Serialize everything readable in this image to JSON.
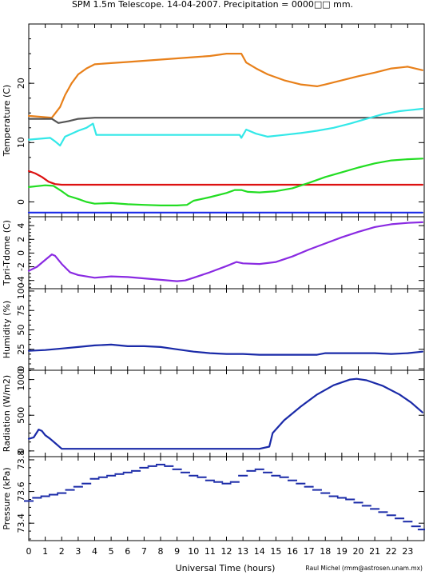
{
  "chart_data": {
    "title": "SPM 1.5m Telescope. 14-04-2007. Precipitation = 0000□□ mm.",
    "xlabel": "Universal Time (hours)",
    "credit": "Raul Michel (rmm@astrosen.unam.mx)",
    "x_ticks": [
      "0",
      "1",
      "2",
      "3",
      "4",
      "5",
      "6",
      "7",
      "8",
      "9",
      "10",
      "11",
      "12",
      "13",
      "14",
      "15",
      "16",
      "17",
      "18",
      "19",
      "20",
      "21",
      "22",
      "23"
    ],
    "xlim": [
      0,
      24
    ],
    "panels": [
      {
        "type": "line",
        "ylabel": "Temperature (C)",
        "ylim": [
          -2.5,
          30
        ],
        "y_ticks": [
          0,
          10,
          20
        ],
        "series": [
          {
            "color": "#e8801a",
            "x": [
              0,
              1.4,
              1.9,
              2.2,
              2.6,
              3,
              3.5,
              4,
              5,
              6,
              7,
              8,
              9,
              10,
              11,
              12,
              12.9,
              13.2,
              13.8,
              14.5,
              15.5,
              16.5,
              17.5,
              18,
              19,
              20,
              21,
              22,
              23,
              23.9
            ],
            "y": [
              14.5,
              14.2,
              16,
              18,
              20,
              21.5,
              22.5,
              23.2,
              23.4,
              23.6,
              23.8,
              24,
              24.2,
              24.4,
              24.6,
              25,
              25,
              23.5,
              22.5,
              21.5,
              20.5,
              19.8,
              19.5,
              19.8,
              20.5,
              21.2,
              21.8,
              22.5,
              22.8,
              22.2
            ]
          },
          {
            "color": "#555555",
            "x": [
              0,
              1.4,
              1.8,
              2.4,
              3,
              4,
              8,
              12,
              16,
              20,
              23.9
            ],
            "y": [
              14,
              14,
              13.3,
              13.6,
              14,
              14.2,
              14.2,
              14.2,
              14.2,
              14.2,
              14.2
            ]
          },
          {
            "color": "#33e8e8",
            "x": [
              0,
              1.3,
              1.6,
              1.9,
              2.2,
              2.6,
              3,
              3.5,
              3.9,
              4.1,
              6,
              8,
              10,
              12.8,
              12.9,
              13.2,
              13.8,
              14.5,
              15.5,
              16.5,
              17.5,
              18.5,
              19.5,
              20.5,
              21.5,
              22.5,
              23.9
            ],
            "y": [
              10.5,
              10.8,
              10.2,
              9.5,
              11,
              11.5,
              12,
              12.5,
              13.2,
              11.3,
              11.3,
              11.3,
              11.3,
              11.3,
              10.8,
              12.2,
              11.5,
              11,
              11.3,
              11.6,
              12,
              12.5,
              13.2,
              14,
              14.8,
              15.3,
              15.7
            ]
          },
          {
            "color": "#dd1111",
            "x": [
              0,
              0.4,
              0.8,
              1.2,
              1.6,
              2,
              3,
              6,
              10,
              14,
              18,
              22,
              23.9
            ],
            "y": [
              5.2,
              4.8,
              4.2,
              3.4,
              3,
              2.9,
              2.9,
              2.9,
              2.9,
              2.9,
              2.9,
              2.9,
              2.9
            ]
          },
          {
            "color": "#22dd22",
            "x": [
              0,
              1,
              1.5,
              2,
              2.4,
              3,
              3.5,
              4,
              5,
              6,
              7,
              8,
              9,
              9.6,
              10,
              11,
              12,
              12.5,
              12.9,
              13.3,
              14,
              15,
              16,
              17,
              18,
              19,
              20,
              21,
              22,
              23,
              23.9
            ],
            "y": [
              2.5,
              2.8,
              2.7,
              1.8,
              1,
              0.5,
              0,
              -0.3,
              -0.2,
              -0.4,
              -0.5,
              -0.6,
              -0.6,
              -0.5,
              0.2,
              0.8,
              1.5,
              2,
              2,
              1.7,
              1.6,
              1.8,
              2.3,
              3.2,
              4.2,
              5,
              5.8,
              6.5,
              7,
              7.2,
              7.3
            ]
          },
          {
            "color": "#1a2ae8",
            "x": [
              0,
              23.9
            ],
            "y": [
              -1.8,
              -1.8
            ]
          }
        ]
      },
      {
        "type": "line",
        "ylabel": "Tpri-Tdome (C)",
        "ylim": [
          -5.2,
          5.3
        ],
        "y_ticks": [
          -4,
          -2,
          0,
          2,
          4
        ],
        "series": [
          {
            "color": "#8a2be2",
            "x": [
              0,
              0.5,
              1,
              1.4,
              1.6,
              2,
              2.5,
              3,
              4,
              5,
              6,
              7,
              8,
              9,
              9.5,
              10,
              11,
              12,
              12.6,
              13,
              14,
              15,
              16,
              17,
              18,
              19,
              20,
              21,
              22,
              23,
              23.9
            ],
            "y": [
              -2.6,
              -2,
              -1,
              -0.2,
              -0.4,
              -1.6,
              -2.8,
              -3.2,
              -3.6,
              -3.4,
              -3.5,
              -3.7,
              -3.9,
              -4.1,
              -4,
              -3.6,
              -2.8,
              -1.9,
              -1.3,
              -1.5,
              -1.6,
              -1.3,
              -0.5,
              0.5,
              1.4,
              2.3,
              3.1,
              3.8,
              4.2,
              4.4,
              4.5
            ]
          }
        ]
      },
      {
        "type": "line",
        "ylabel": "Humidity (%)",
        "ylim": [
          -2,
          103
        ],
        "y_ticks": [
          0,
          25,
          50,
          75,
          100
        ],
        "y_tick_labels": [
          "0",
          "25",
          "50",
          "75",
          "100"
        ],
        "series": [
          {
            "color": "#1a2aa8",
            "x": [
              0,
              1,
              2,
              3,
              4,
              5,
              5.5,
              6,
              7,
              8,
              9,
              10,
              11,
              12,
              13,
              14,
              15,
              16,
              17,
              17.5,
              18,
              19,
              20,
              21,
              22,
              23,
              23.9
            ],
            "y": [
              23,
              24,
              26,
              28,
              30,
              31,
              30,
              29,
              29,
              28,
              25,
              22,
              20,
              19,
              19,
              18,
              18,
              18,
              18,
              18,
              20,
              20,
              20,
              20,
              19,
              20,
              22
            ]
          }
        ]
      },
      {
        "type": "line",
        "ylabel": "Radiation (W/m2)",
        "ylim": [
          -80,
          1130
        ],
        "y_ticks": [
          0,
          500,
          1000
        ],
        "series": [
          {
            "color": "#1a2aa8",
            "x": [
              0,
              0.3,
              0.6,
              0.8,
              1,
              1.3,
              1.6,
              2,
              3,
              6,
              10,
              12,
              14,
              14.6,
              14.8,
              15.5,
              16.5,
              17.5,
              18.5,
              19.5,
              19.9,
              20.5,
              21.5,
              22.5,
              23.2,
              23.9
            ],
            "y": [
              170,
              190,
              300,
              280,
              220,
              170,
              110,
              30,
              30,
              30,
              30,
              30,
              30,
              60,
              250,
              430,
              620,
              790,
              920,
              1000,
              1010,
              990,
              910,
              790,
              680,
              540
            ]
          }
        ]
      },
      {
        "type": "scatter",
        "ylabel": "Pressure (kPa)",
        "ylim": [
          73.29,
          73.82
        ],
        "y_ticks": [
          73.4,
          73.6,
          73.8
        ],
        "series": [
          {
            "color": "#1a2aa8",
            "x": [
              0,
              0.5,
              1,
              1.5,
              2,
              2.5,
              3,
              3.5,
              4,
              4.5,
              5,
              5.5,
              6,
              6.5,
              7,
              7.5,
              8,
              8.5,
              9,
              9.5,
              10,
              10.5,
              11,
              11.5,
              12,
              12.5,
              13,
              13.5,
              14,
              14.5,
              15,
              15.5,
              16,
              16.5,
              17,
              17.5,
              18,
              18.5,
              19,
              19.5,
              20,
              20.5,
              21,
              21.5,
              22,
              22.5,
              23,
              23.5,
              23.9
            ],
            "y": [
              73.54,
              73.56,
              73.57,
              73.58,
              73.59,
              73.61,
              73.63,
              73.65,
              73.68,
              73.69,
              73.7,
              73.71,
              73.72,
              73.73,
              73.75,
              73.76,
              73.77,
              73.76,
              73.74,
              73.72,
              73.7,
              73.69,
              73.67,
              73.66,
              73.65,
              73.66,
              73.7,
              73.73,
              73.74,
              73.72,
              73.7,
              73.69,
              73.67,
              73.65,
              73.63,
              73.61,
              73.59,
              73.57,
              73.56,
              73.55,
              73.53,
              73.51,
              73.49,
              73.47,
              73.45,
              73.43,
              73.41,
              73.38,
              73.36
            ]
          }
        ]
      }
    ]
  }
}
